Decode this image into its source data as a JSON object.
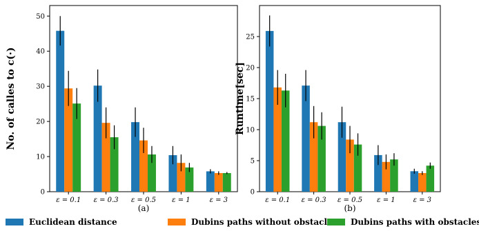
{
  "chart_data": [
    {
      "type": "bar",
      "panel_label": "(a)",
      "ylabel": "No. of calles to c(·)",
      "categories": [
        "ε = 0.1",
        "ε = 0.3",
        "ε = 0.5",
        "ε = 1",
        "ε = 3"
      ],
      "ylim": [
        0,
        53
      ],
      "yticks": [
        0,
        10,
        20,
        30,
        40,
        50
      ],
      "series": [
        {
          "name": "Euclidean distance",
          "values": [
            45.8,
            30.2,
            19.8,
            10.4,
            5.8
          ],
          "errors": [
            4.2,
            4.6,
            4.2,
            2.6,
            0.6
          ]
        },
        {
          "name": "Dubins paths without obstacles",
          "values": [
            29.4,
            19.6,
            14.6,
            8.2,
            5.3
          ],
          "errors": [
            5.0,
            4.4,
            3.6,
            2.4,
            0.5
          ]
        },
        {
          "name": "Dubins paths with obstacles",
          "values": [
            25.1,
            15.5,
            10.6,
            6.9,
            5.3
          ],
          "errors": [
            4.4,
            3.4,
            2.4,
            1.3,
            0.3
          ]
        }
      ]
    },
    {
      "type": "bar",
      "panel_label": "(b)",
      "ylabel": "Runtime[sec]",
      "categories": [
        "ε = 0.1",
        "ε = 0.3",
        "ε = 0.5",
        "ε = 1",
        "ε = 3"
      ],
      "ylim": [
        0,
        30
      ],
      "yticks": [
        0,
        5,
        10,
        15,
        20,
        25
      ],
      "series": [
        {
          "name": "Euclidean distance",
          "values": [
            25.9,
            17.1,
            11.2,
            5.9,
            3.3
          ],
          "errors": [
            2.5,
            2.5,
            2.5,
            1.6,
            0.4
          ]
        },
        {
          "name": "Dubins paths without obstacles",
          "values": [
            16.8,
            11.2,
            8.4,
            4.8,
            3.0
          ],
          "errors": [
            2.8,
            2.6,
            2.2,
            1.2,
            0.3
          ]
        },
        {
          "name": "Dubins paths with obstacles",
          "values": [
            16.3,
            10.6,
            7.6,
            5.2,
            4.2
          ],
          "errors": [
            2.7,
            2.2,
            1.8,
            1.0,
            0.5
          ]
        }
      ]
    }
  ],
  "colors": {
    "series": [
      "#1f77b4",
      "#ff7f0e",
      "#2ca02c"
    ],
    "error_bar": "#000000"
  },
  "legend": {
    "placement": "bottom",
    "items": [
      {
        "label": "Euclidean distance",
        "color": "#1f77b4"
      },
      {
        "label": "Dubins paths without obstacles",
        "color": "#ff7f0e"
      },
      {
        "label": "Dubins paths with obstacles",
        "color": "#2ca02c"
      }
    ]
  }
}
